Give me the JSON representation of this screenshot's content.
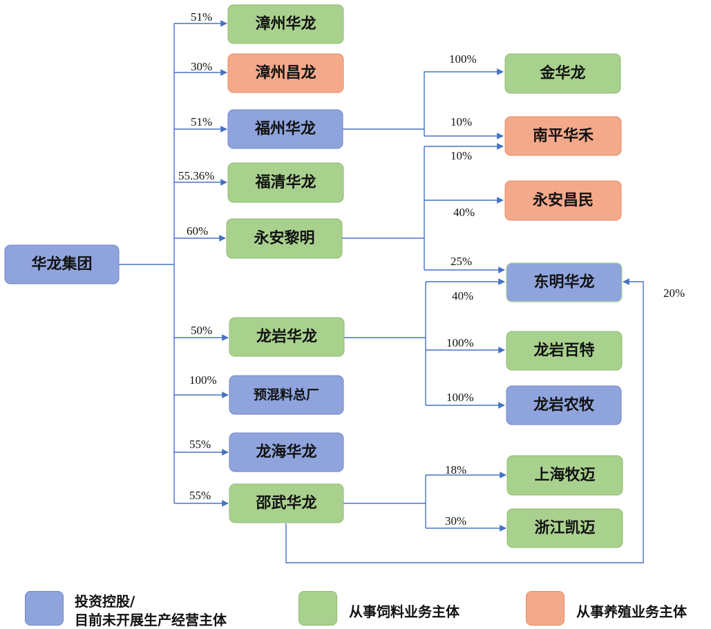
{
  "colors": {
    "blue": "#8FA4DC",
    "blue_border": "#6F86C7",
    "green": "#A9D18E",
    "green_border": "#8DBB72",
    "orange": "#F4A98A",
    "orange_border": "#E48C68",
    "line": "#4472C4"
  },
  "nodes": {
    "root": "华龙集团",
    "zhangzhou_hualong": "漳州华龙",
    "zhangzhou_changlong": "漳州昌龙",
    "fuzhou_hualong": "福州华龙",
    "fuqing_hualong": "福清华龙",
    "yongan_liming": "永安黎明",
    "longyan_hualong": "龙岩华龙",
    "yuhunliao": "预混料总厂",
    "longhai_hualong": "龙海华龙",
    "shaowu_hualong": "邵武华龙",
    "jin_hualong": "金华龙",
    "nanping_huahe": "南平华禾",
    "yongan_changmin": "永安昌民",
    "dongming_hualong": "东明华龙",
    "longyan_baite": "龙岩百特",
    "longyan_nongmu": "龙岩农牧",
    "shanghai_mumai": "上海牧迈",
    "zhejiang_kaimai": "浙江凯迈"
  },
  "percentages": {
    "zhangzhou_hualong": "51%",
    "zhangzhou_changlong": "30%",
    "fuzhou_hualong": "51%",
    "fuqing_hualong": "55.36%",
    "yongan_liming": "60%",
    "longyan_hualong": "50%",
    "yuhunliao": "100%",
    "longhai_hualong": "55%",
    "shaowu_hualong": "55%",
    "fuzhou_to_jin": "100%",
    "fuzhou_to_nanping": "10%",
    "yongan_to_nanping": "10%",
    "yongan_to_changmin": "40%",
    "yongan_to_dongming": "25%",
    "longyan_to_dongming": "40%",
    "longyan_to_baite": "100%",
    "longyan_to_nongmu": "100%",
    "shaowu_to_shanghai": "18%",
    "shaowu_to_zhejiang": "30%",
    "shaowu_to_dongming": "20%"
  },
  "legend": {
    "blue_label_line1": "投资控股/",
    "blue_label_line2": "目前未开展生产经营主体",
    "green_label": "从事饲料业务主体",
    "orange_label": "从事养殖业务主体"
  }
}
